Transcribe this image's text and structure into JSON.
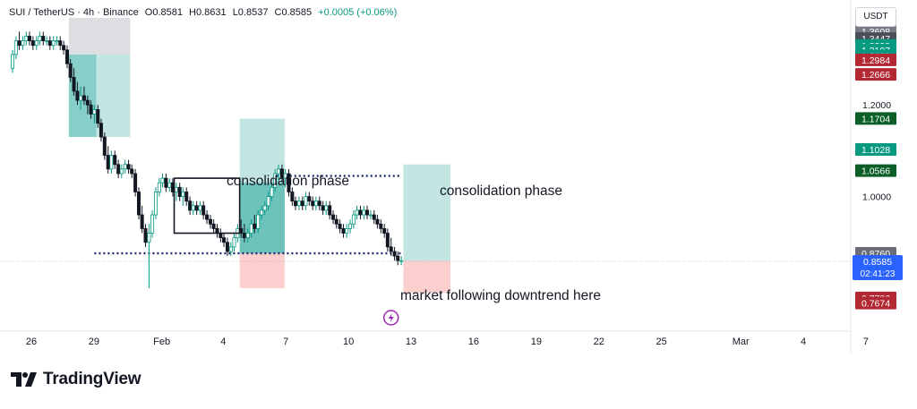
{
  "legend": {
    "symbol": "SUI / TetherUS · 4h · Binance",
    "open": "O0.8581",
    "high": "H0.8631",
    "low": "L0.8537",
    "close": "C0.8585",
    "change": "+0.0005 (+0.06%)"
  },
  "currency_button": "USDT",
  "brand_name": "TradingView",
  "annotations": {
    "consolidation_1": "consolidation phase",
    "consolidation_2": "consolidation phase",
    "downtrend": "market following downtrend here"
  },
  "colors": {
    "up": "#089981",
    "down": "#131722",
    "green_zone": "#26a69a",
    "red_zone": "#ef5350",
    "gray_zone": "#b2b5be",
    "price_tag": "#2962ff",
    "dotted_line": "#1c2a6b"
  },
  "chart_data": {
    "type": "candlestick",
    "ylim": [
      0.71,
      1.39
    ],
    "xlim": [
      "Jan 25",
      "Mar 6"
    ],
    "x_ticks": [
      "26",
      "29",
      "Feb",
      "4",
      "7",
      "10",
      "13",
      "16",
      "19",
      "22",
      "25",
      "Mar",
      "4",
      "7"
    ],
    "y_ticks": [
      "1.2000",
      "1.0000"
    ],
    "price_labels": [
      {
        "text": "1.3608",
        "value": 1.3608,
        "color": "#787b86"
      },
      {
        "text": "1.3447",
        "value": 1.3447,
        "color": "#4a4e59"
      },
      {
        "text": "1.3298",
        "value": 1.3298,
        "color": "#089981"
      },
      {
        "text": "1.3197",
        "value": 1.3197,
        "color": "#089981"
      },
      {
        "text": "1.3069",
        "value": 1.3069,
        "color": "#089981"
      },
      {
        "text": "1.2984",
        "value": 1.2984,
        "color": "#b22833"
      },
      {
        "text": "1.2666",
        "value": 1.2666,
        "color": "#b22833"
      },
      {
        "text": "1.1704",
        "value": 1.1704,
        "color": "#0b5f26"
      },
      {
        "text": "1.1028",
        "value": 1.1028,
        "color": "#089981"
      },
      {
        "text": "1.0566",
        "value": 1.0566,
        "color": "#0b5f26"
      },
      {
        "text": "0.8760",
        "value": 0.876,
        "color": "#6a6d78"
      },
      {
        "text": "0.8508",
        "value": 0.8508,
        "color": "#6a6d78"
      },
      {
        "text": "0.7786",
        "value": 0.7786,
        "color": "#b22833"
      },
      {
        "text": "0.7674",
        "value": 0.7674,
        "color": "#b22833"
      }
    ],
    "current_price": {
      "value": 0.8585,
      "text": "0.8585",
      "countdown": "02:41:23"
    },
    "candles": [
      {
        "x": 0.0,
        "o": 1.28,
        "h": 1.32,
        "l": 1.27,
        "c": 1.31
      },
      {
        "x": 0.17,
        "o": 1.31,
        "h": 1.35,
        "l": 1.3,
        "c": 1.34
      },
      {
        "x": 0.33,
        "o": 1.34,
        "h": 1.36,
        "l": 1.32,
        "c": 1.33
      },
      {
        "x": 0.5,
        "o": 1.33,
        "h": 1.35,
        "l": 1.32,
        "c": 1.34
      },
      {
        "x": 0.67,
        "o": 1.34,
        "h": 1.36,
        "l": 1.33,
        "c": 1.35
      },
      {
        "x": 0.83,
        "o": 1.35,
        "h": 1.36,
        "l": 1.33,
        "c": 1.34
      },
      {
        "x": 1.0,
        "o": 1.34,
        "h": 1.35,
        "l": 1.32,
        "c": 1.33
      },
      {
        "x": 1.17,
        "o": 1.33,
        "h": 1.35,
        "l": 1.32,
        "c": 1.34
      },
      {
        "x": 1.33,
        "o": 1.34,
        "h": 1.36,
        "l": 1.33,
        "c": 1.35
      },
      {
        "x": 1.5,
        "o": 1.35,
        "h": 1.36,
        "l": 1.33,
        "c": 1.34
      },
      {
        "x": 1.67,
        "o": 1.34,
        "h": 1.35,
        "l": 1.33,
        "c": 1.34
      },
      {
        "x": 1.83,
        "o": 1.34,
        "h": 1.35,
        "l": 1.32,
        "c": 1.33
      },
      {
        "x": 2.0,
        "o": 1.33,
        "h": 1.35,
        "l": 1.32,
        "c": 1.34
      },
      {
        "x": 2.17,
        "o": 1.34,
        "h": 1.35,
        "l": 1.33,
        "c": 1.34
      },
      {
        "x": 2.33,
        "o": 1.34,
        "h": 1.35,
        "l": 1.32,
        "c": 1.33
      },
      {
        "x": 2.5,
        "o": 1.33,
        "h": 1.34,
        "l": 1.31,
        "c": 1.32
      },
      {
        "x": 2.67,
        "o": 1.32,
        "h": 1.33,
        "l": 1.28,
        "c": 1.29
      },
      {
        "x": 2.83,
        "o": 1.29,
        "h": 1.3,
        "l": 1.25,
        "c": 1.26
      },
      {
        "x": 3.0,
        "o": 1.26,
        "h": 1.28,
        "l": 1.22,
        "c": 1.23
      },
      {
        "x": 3.17,
        "o": 1.23,
        "h": 1.25,
        "l": 1.2,
        "c": 1.21
      },
      {
        "x": 3.33,
        "o": 1.21,
        "h": 1.24,
        "l": 1.19,
        "c": 1.22
      },
      {
        "x": 3.5,
        "o": 1.22,
        "h": 1.24,
        "l": 1.2,
        "c": 1.21
      },
      {
        "x": 3.67,
        "o": 1.21,
        "h": 1.22,
        "l": 1.18,
        "c": 1.2
      },
      {
        "x": 3.83,
        "o": 1.2,
        "h": 1.21,
        "l": 1.17,
        "c": 1.18
      },
      {
        "x": 4.0,
        "o": 1.18,
        "h": 1.2,
        "l": 1.16,
        "c": 1.19
      },
      {
        "x": 4.17,
        "o": 1.19,
        "h": 1.2,
        "l": 1.15,
        "c": 1.16
      },
      {
        "x": 4.33,
        "o": 1.16,
        "h": 1.17,
        "l": 1.12,
        "c": 1.13
      },
      {
        "x": 4.5,
        "o": 1.13,
        "h": 1.14,
        "l": 1.08,
        "c": 1.09
      },
      {
        "x": 4.67,
        "o": 1.09,
        "h": 1.11,
        "l": 1.05,
        "c": 1.06
      },
      {
        "x": 4.83,
        "o": 1.06,
        "h": 1.1,
        "l": 1.05,
        "c": 1.09
      },
      {
        "x": 5.0,
        "o": 1.09,
        "h": 1.1,
        "l": 1.06,
        "c": 1.07
      },
      {
        "x": 5.17,
        "o": 1.07,
        "h": 1.08,
        "l": 1.04,
        "c": 1.05
      },
      {
        "x": 5.33,
        "o": 1.05,
        "h": 1.07,
        "l": 1.04,
        "c": 1.06
      },
      {
        "x": 5.5,
        "o": 1.06,
        "h": 1.08,
        "l": 1.05,
        "c": 1.07
      },
      {
        "x": 5.67,
        "o": 1.07,
        "h": 1.08,
        "l": 1.05,
        "c": 1.06
      },
      {
        "x": 5.83,
        "o": 1.06,
        "h": 1.07,
        "l": 1.04,
        "c": 1.05
      },
      {
        "x": 6.0,
        "o": 1.05,
        "h": 1.06,
        "l": 1.0,
        "c": 1.01
      },
      {
        "x": 6.17,
        "o": 1.01,
        "h": 1.02,
        "l": 0.95,
        "c": 0.96
      },
      {
        "x": 6.33,
        "o": 0.96,
        "h": 0.98,
        "l": 0.92,
        "c": 0.93
      },
      {
        "x": 6.5,
        "o": 0.93,
        "h": 0.94,
        "l": 0.89,
        "c": 0.9
      },
      {
        "x": 6.67,
        "o": 0.9,
        "h": 0.94,
        "l": 0.8,
        "c": 0.92
      },
      {
        "x": 6.83,
        "o": 0.92,
        "h": 0.97,
        "l": 0.91,
        "c": 0.96
      },
      {
        "x": 7.0,
        "o": 0.96,
        "h": 1.02,
        "l": 0.95,
        "c": 1.01
      },
      {
        "x": 7.17,
        "o": 1.01,
        "h": 1.04,
        "l": 1.0,
        "c": 1.03
      },
      {
        "x": 7.33,
        "o": 1.03,
        "h": 1.05,
        "l": 1.02,
        "c": 1.04
      },
      {
        "x": 7.5,
        "o": 1.04,
        "h": 1.05,
        "l": 1.01,
        "c": 1.02
      },
      {
        "x": 7.67,
        "o": 1.02,
        "h": 1.04,
        "l": 1.01,
        "c": 1.03
      },
      {
        "x": 7.83,
        "o": 1.03,
        "h": 1.04,
        "l": 1.0,
        "c": 1.01
      },
      {
        "x": 8.0,
        "o": 1.01,
        "h": 1.03,
        "l": 0.99,
        "c": 1.02
      },
      {
        "x": 8.17,
        "o": 1.02,
        "h": 1.03,
        "l": 0.99,
        "c": 1.0
      },
      {
        "x": 8.33,
        "o": 1.0,
        "h": 1.02,
        "l": 0.98,
        "c": 1.01
      },
      {
        "x": 8.5,
        "o": 1.01,
        "h": 1.02,
        "l": 0.98,
        "c": 0.99
      },
      {
        "x": 8.67,
        "o": 0.99,
        "h": 1.0,
        "l": 0.96,
        "c": 0.97
      },
      {
        "x": 8.83,
        "o": 0.97,
        "h": 0.99,
        "l": 0.96,
        "c": 0.98
      },
      {
        "x": 9.0,
        "o": 0.98,
        "h": 0.99,
        "l": 0.96,
        "c": 0.97
      },
      {
        "x": 9.17,
        "o": 0.97,
        "h": 0.99,
        "l": 0.96,
        "c": 0.98
      },
      {
        "x": 9.33,
        "o": 0.98,
        "h": 0.99,
        "l": 0.95,
        "c": 0.96
      },
      {
        "x": 9.5,
        "o": 0.96,
        "h": 0.97,
        "l": 0.94,
        "c": 0.95
      },
      {
        "x": 9.67,
        "o": 0.95,
        "h": 0.96,
        "l": 0.93,
        "c": 0.94
      },
      {
        "x": 9.83,
        "o": 0.94,
        "h": 0.95,
        "l": 0.92,
        "c": 0.93
      },
      {
        "x": 10.0,
        "o": 0.93,
        "h": 0.94,
        "l": 0.91,
        "c": 0.92
      },
      {
        "x": 10.17,
        "o": 0.92,
        "h": 0.93,
        "l": 0.9,
        "c": 0.91
      },
      {
        "x": 10.33,
        "o": 0.91,
        "h": 0.92,
        "l": 0.89,
        "c": 0.9
      },
      {
        "x": 10.5,
        "o": 0.9,
        "h": 0.91,
        "l": 0.87,
        "c": 0.88
      },
      {
        "x": 10.67,
        "o": 0.88,
        "h": 0.9,
        "l": 0.87,
        "c": 0.89
      },
      {
        "x": 10.83,
        "o": 0.89,
        "h": 0.92,
        "l": 0.88,
        "c": 0.91
      },
      {
        "x": 11.0,
        "o": 0.91,
        "h": 0.94,
        "l": 0.9,
        "c": 0.93
      },
      {
        "x": 11.17,
        "o": 0.93,
        "h": 0.95,
        "l": 0.91,
        "c": 0.92
      },
      {
        "x": 11.33,
        "o": 0.92,
        "h": 0.94,
        "l": 0.9,
        "c": 0.91
      },
      {
        "x": 11.5,
        "o": 0.91,
        "h": 0.93,
        "l": 0.9,
        "c": 0.92
      },
      {
        "x": 11.67,
        "o": 0.92,
        "h": 0.95,
        "l": 0.91,
        "c": 0.94
      },
      {
        "x": 11.83,
        "o": 0.94,
        "h": 0.96,
        "l": 0.92,
        "c": 0.93
      },
      {
        "x": 12.0,
        "o": 0.93,
        "h": 0.97,
        "l": 0.92,
        "c": 0.96
      },
      {
        "x": 12.17,
        "o": 0.96,
        "h": 0.98,
        "l": 0.95,
        "c": 0.97
      },
      {
        "x": 12.33,
        "o": 0.97,
        "h": 0.99,
        "l": 0.96,
        "c": 0.98
      },
      {
        "x": 12.5,
        "o": 0.98,
        "h": 1.01,
        "l": 0.97,
        "c": 1.0
      },
      {
        "x": 12.67,
        "o": 1.0,
        "h": 1.03,
        "l": 0.99,
        "c": 1.02
      },
      {
        "x": 12.83,
        "o": 1.02,
        "h": 1.06,
        "l": 1.01,
        "c": 1.05
      },
      {
        "x": 13.0,
        "o": 1.05,
        "h": 1.07,
        "l": 1.03,
        "c": 1.06
      },
      {
        "x": 13.17,
        "o": 1.06,
        "h": 1.07,
        "l": 1.03,
        "c": 1.04
      },
      {
        "x": 13.33,
        "o": 1.04,
        "h": 1.06,
        "l": 1.02,
        "c": 1.05
      },
      {
        "x": 13.5,
        "o": 1.05,
        "h": 1.06,
        "l": 1.0,
        "c": 1.01
      },
      {
        "x": 13.67,
        "o": 1.01,
        "h": 1.02,
        "l": 0.98,
        "c": 0.99
      },
      {
        "x": 13.83,
        "o": 0.99,
        "h": 1.0,
        "l": 0.97,
        "c": 0.98
      },
      {
        "x": 14.0,
        "o": 0.98,
        "h": 1.0,
        "l": 0.97,
        "c": 0.99
      },
      {
        "x": 14.17,
        "o": 0.99,
        "h": 1.0,
        "l": 0.97,
        "c": 0.98
      },
      {
        "x": 14.33,
        "o": 0.98,
        "h": 1.01,
        "l": 0.97,
        "c": 1.0
      },
      {
        "x": 14.5,
        "o": 1.0,
        "h": 1.01,
        "l": 0.98,
        "c": 0.99
      },
      {
        "x": 14.67,
        "o": 0.99,
        "h": 1.0,
        "l": 0.97,
        "c": 0.98
      },
      {
        "x": 14.83,
        "o": 0.98,
        "h": 1.0,
        "l": 0.97,
        "c": 0.99
      },
      {
        "x": 15.0,
        "o": 0.99,
        "h": 1.0,
        "l": 0.97,
        "c": 0.98
      },
      {
        "x": 15.17,
        "o": 0.98,
        "h": 0.99,
        "l": 0.96,
        "c": 0.97
      },
      {
        "x": 15.33,
        "o": 0.97,
        "h": 0.99,
        "l": 0.96,
        "c": 0.98
      },
      {
        "x": 15.5,
        "o": 0.98,
        "h": 0.99,
        "l": 0.95,
        "c": 0.96
      },
      {
        "x": 15.67,
        "o": 0.96,
        "h": 0.97,
        "l": 0.94,
        "c": 0.95
      },
      {
        "x": 15.83,
        "o": 0.95,
        "h": 0.96,
        "l": 0.93,
        "c": 0.94
      },
      {
        "x": 16.0,
        "o": 0.94,
        "h": 0.95,
        "l": 0.92,
        "c": 0.93
      },
      {
        "x": 16.17,
        "o": 0.93,
        "h": 0.94,
        "l": 0.91,
        "c": 0.92
      },
      {
        "x": 16.33,
        "o": 0.92,
        "h": 0.94,
        "l": 0.91,
        "c": 0.93
      },
      {
        "x": 16.5,
        "o": 0.93,
        "h": 0.95,
        "l": 0.92,
        "c": 0.94
      },
      {
        "x": 16.67,
        "o": 0.94,
        "h": 0.97,
        "l": 0.93,
        "c": 0.96
      },
      {
        "x": 16.83,
        "o": 0.96,
        "h": 0.98,
        "l": 0.95,
        "c": 0.97
      },
      {
        "x": 17.0,
        "o": 0.97,
        "h": 0.98,
        "l": 0.95,
        "c": 0.96
      },
      {
        "x": 17.17,
        "o": 0.96,
        "h": 0.98,
        "l": 0.95,
        "c": 0.97
      },
      {
        "x": 17.33,
        "o": 0.97,
        "h": 0.98,
        "l": 0.95,
        "c": 0.96
      },
      {
        "x": 17.5,
        "o": 0.96,
        "h": 0.97,
        "l": 0.95,
        "c": 0.96
      },
      {
        "x": 17.67,
        "o": 0.96,
        "h": 0.97,
        "l": 0.94,
        "c": 0.95
      },
      {
        "x": 17.83,
        "o": 0.95,
        "h": 0.96,
        "l": 0.93,
        "c": 0.94
      },
      {
        "x": 18.0,
        "o": 0.94,
        "h": 0.95,
        "l": 0.92,
        "c": 0.93
      },
      {
        "x": 18.17,
        "o": 0.93,
        "h": 0.94,
        "l": 0.91,
        "c": 0.92
      },
      {
        "x": 18.33,
        "o": 0.92,
        "h": 0.93,
        "l": 0.88,
        "c": 0.89
      },
      {
        "x": 18.5,
        "o": 0.89,
        "h": 0.91,
        "l": 0.87,
        "c": 0.88
      },
      {
        "x": 18.67,
        "o": 0.88,
        "h": 0.89,
        "l": 0.86,
        "c": 0.87
      },
      {
        "x": 18.83,
        "o": 0.87,
        "h": 0.88,
        "l": 0.85,
        "c": 0.86
      },
      {
        "x": 19.0,
        "o": 0.86,
        "h": 0.87,
        "l": 0.85,
        "c": 0.86
      }
    ],
    "levels": [
      {
        "name": "support-dotted",
        "value": 0.876,
        "x_start": 4.0,
        "x_end": 19.1
      },
      {
        "name": "resistance-dotted",
        "value": 1.045,
        "x_start": 12.9,
        "x_end": 19.0
      }
    ],
    "zones": [
      {
        "name": "gray-zone-top",
        "x0": 2.75,
        "x1": 5.75,
        "y0": 1.31,
        "y1": 1.39,
        "color": "gray"
      },
      {
        "name": "green-zone-left",
        "x0": 2.75,
        "x1": 4.1,
        "y0": 1.13,
        "y1": 1.31,
        "color": "green-dark"
      },
      {
        "name": "green-zone-left-light",
        "x0": 4.1,
        "x1": 5.75,
        "y0": 1.13,
        "y1": 1.31,
        "color": "green-light"
      },
      {
        "name": "green-zone-mid",
        "x0": 11.1,
        "x1": 13.3,
        "y0": 0.876,
        "y1": 1.17,
        "color": "green-light"
      },
      {
        "name": "green-zone-mid-dark",
        "x0": 11.1,
        "x1": 13.3,
        "y0": 0.876,
        "y1": 1.03,
        "color": "green-dark"
      },
      {
        "name": "red-zone-mid",
        "x0": 11.1,
        "x1": 13.3,
        "y0": 0.8,
        "y1": 0.876,
        "color": "red"
      },
      {
        "name": "green-zone-right",
        "x0": 19.1,
        "x1": 21.4,
        "y0": 0.86,
        "y1": 1.07,
        "color": "green-light"
      },
      {
        "name": "red-zone-right",
        "x0": 19.1,
        "x1": 21.4,
        "y0": 0.79,
        "y1": 0.86,
        "color": "red"
      }
    ],
    "consolidation_box": {
      "x0": 7.9,
      "x1": 11.1,
      "y0": 0.92,
      "y1": 1.04
    }
  }
}
